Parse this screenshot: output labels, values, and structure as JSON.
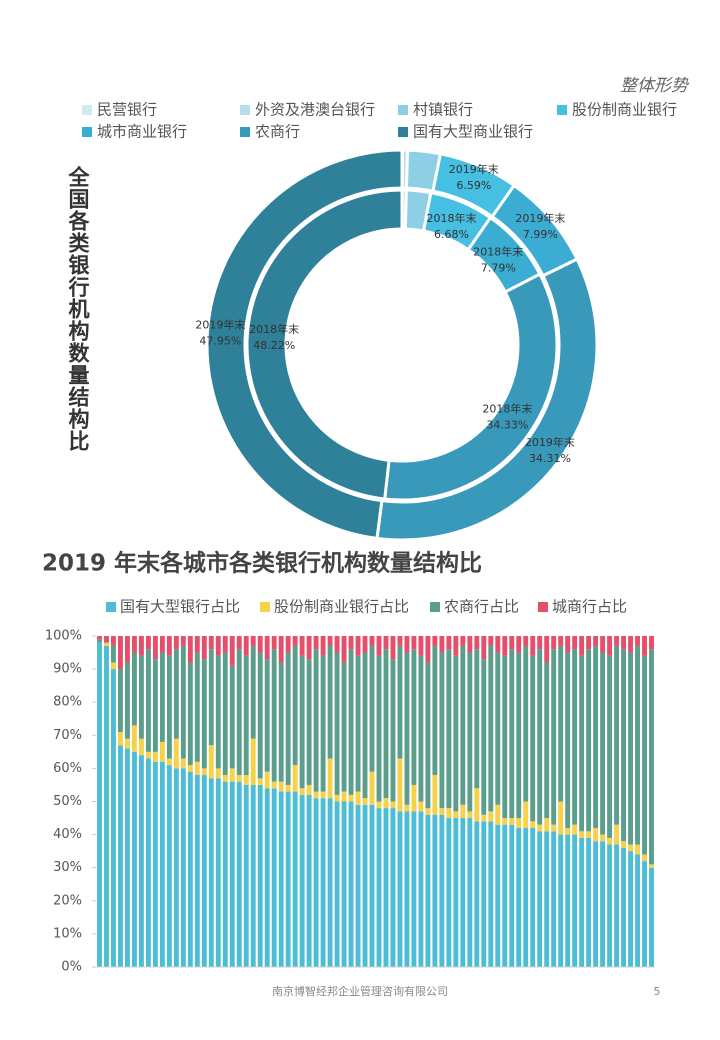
{
  "header": "整体形势",
  "footer": {
    "company": "南京博智经邦企业管理咨询有限公司",
    "page": 5
  },
  "chart_data": [
    {
      "type": "donut",
      "title": "全国各类银行机构数量结构比",
      "categories": [
        "民营银行",
        "外资及港澳台银行",
        "村镇银行",
        "股份制商业银行",
        "城市商业银行",
        "农商行",
        "国有大型商业银行"
      ],
      "colors": [
        "#d3eaf1",
        "#b7dcea",
        "#8fcfe6",
        "#45bfe2",
        "#3badd3",
        "#3899bb",
        "#2f8099"
      ],
      "series": [
        {
          "name": "2019年末",
          "values": [
            0.04,
            0.41,
            2.71,
            6.59,
            7.99,
            34.31,
            47.95
          ],
          "value_labels": [
            null,
            null,
            null,
            "6.59%",
            "7.99%",
            "34.31%",
            "47.95%"
          ]
        },
        {
          "name": "2018年末",
          "values": [
            0.03,
            0.42,
            2.53,
            6.68,
            7.79,
            34.33,
            48.22
          ],
          "value_labels": [
            null,
            null,
            null,
            "6.68%",
            "7.79%",
            "34.33%",
            "48.22%"
          ]
        }
      ]
    },
    {
      "type": "stacked_bar",
      "title": "2019 年末各城市各类银行机构数量结构比",
      "categories": [
        null,
        null,
        null,
        null,
        null,
        null,
        null,
        null,
        null,
        null,
        null,
        null,
        null,
        null,
        null,
        null,
        null,
        null,
        null,
        null,
        null,
        null,
        null,
        null,
        null,
        null,
        null,
        null,
        null,
        null,
        null,
        null,
        null,
        null,
        null,
        null,
        null,
        null,
        null,
        null,
        null,
        null,
        null,
        null,
        null,
        null,
        null,
        null,
        null,
        null,
        null,
        null,
        null,
        null,
        null,
        null,
        null,
        null,
        null,
        null,
        null,
        null,
        null,
        null,
        null,
        null,
        null,
        null,
        null,
        null,
        null,
        null,
        null,
        null,
        null,
        null,
        null,
        null,
        null,
        null
      ],
      "series": [
        {
          "name": "国有大型银行占比",
          "color": "#4cbdd5",
          "values": [
            98,
            97,
            90,
            67,
            66,
            65,
            64,
            63,
            62,
            62,
            61,
            60,
            60,
            59,
            58,
            58,
            57,
            57,
            56,
            56,
            56,
            55,
            55,
            55,
            54,
            54,
            53,
            53,
            53,
            52,
            52,
            51,
            51,
            51,
            50,
            50,
            50,
            49,
            49,
            49,
            48,
            48,
            48,
            47,
            47,
            47,
            47,
            46,
            46,
            46,
            45,
            45,
            45,
            45,
            44,
            44,
            44,
            43,
            43,
            43,
            42,
            42,
            42,
            41,
            41,
            41,
            40,
            40,
            40,
            39,
            39,
            38,
            38,
            37,
            37,
            36,
            35,
            34,
            32,
            30
          ]
        },
        {
          "name": "股份制商业银行占比",
          "color": "#f6d24c",
          "values": [
            0,
            1,
            2,
            4,
            3,
            8,
            5,
            2,
            3,
            6,
            2,
            9,
            3,
            2,
            4,
            2,
            10,
            3,
            2,
            4,
            2,
            3,
            14,
            2,
            5,
            2,
            3,
            2,
            8,
            2,
            3,
            2,
            2,
            12,
            2,
            3,
            2,
            4,
            2,
            10,
            2,
            3,
            2,
            16,
            2,
            8,
            3,
            2,
            12,
            2,
            3,
            2,
            4,
            2,
            10,
            2,
            3,
            6,
            2,
            2,
            3,
            8,
            2,
            2,
            4,
            2,
            10,
            2,
            3,
            2,
            2,
            4,
            2,
            2,
            6,
            2,
            2,
            3,
            2,
            1
          ]
        },
        {
          "name": "农商行占比",
          "color": "#5c9e8c",
          "values": [
            1,
            0,
            5,
            19,
            23,
            22,
            25,
            31,
            28,
            27,
            31,
            27,
            34,
            31,
            33,
            33,
            29,
            34,
            37,
            31,
            38,
            36,
            28,
            38,
            34,
            40,
            36,
            40,
            36,
            40,
            38,
            43,
            41,
            34,
            43,
            39,
            44,
            41,
            44,
            38,
            44,
            45,
            43,
            34,
            46,
            41,
            44,
            44,
            39,
            47,
            48,
            47,
            48,
            48,
            42,
            47,
            50,
            46,
            49,
            51,
            50,
            47,
            50,
            53,
            47,
            53,
            47,
            53,
            53,
            53,
            55,
            55,
            55,
            55,
            54,
            58,
            58,
            60,
            60,
            65
          ]
        },
        {
          "name": "城商行占比",
          "color": "#e64f6c",
          "values": [
            1,
            2,
            3,
            10,
            8,
            5,
            6,
            4,
            7,
            5,
            6,
            4,
            3,
            8,
            5,
            7,
            4,
            6,
            5,
            9,
            4,
            6,
            3,
            5,
            7,
            4,
            8,
            5,
            3,
            6,
            7,
            4,
            6,
            3,
            5,
            8,
            4,
            6,
            5,
            3,
            6,
            4,
            7,
            3,
            5,
            4,
            6,
            8,
            3,
            5,
            4,
            6,
            3,
            5,
            4,
            7,
            3,
            5,
            6,
            4,
            5,
            3,
            6,
            4,
            8,
            4,
            3,
            5,
            4,
            6,
            4,
            3,
            5,
            6,
            3,
            4,
            5,
            3,
            6,
            4
          ]
        }
      ],
      "ylim": [
        0,
        100
      ],
      "yticks": [
        {
          "value": 0,
          "label": "0%"
        },
        {
          "value": 10,
          "label": "10%"
        },
        {
          "value": 20,
          "label": "20%"
        },
        {
          "value": 30,
          "label": "30%"
        },
        {
          "value": 40,
          "label": "40%"
        },
        {
          "value": 50,
          "label": "50%"
        },
        {
          "value": 60,
          "label": "60%"
        },
        {
          "value": 70,
          "label": "70%"
        },
        {
          "value": 80,
          "label": "80%"
        },
        {
          "value": 90,
          "label": "90%"
        },
        {
          "value": 100,
          "label": "100%"
        }
      ]
    }
  ]
}
